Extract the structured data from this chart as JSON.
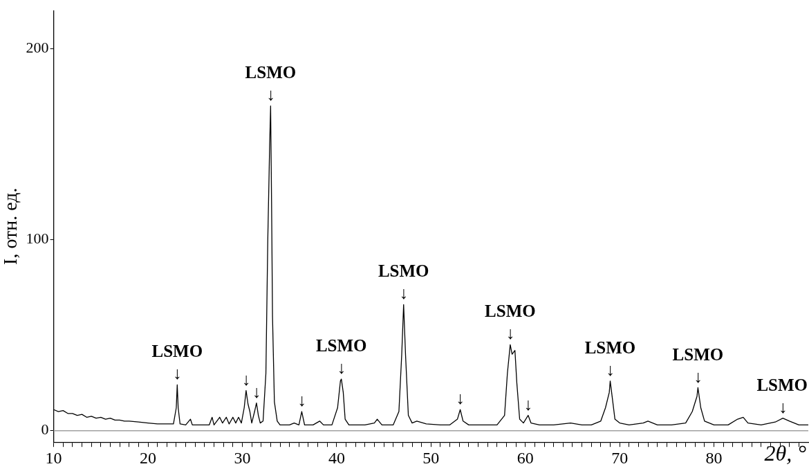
{
  "chart_data": {
    "type": "line",
    "xlabel": "2θ, °",
    "ylabel": "I, отн. ед.",
    "xlim": [
      10,
      90
    ],
    "ylim": [
      -6,
      220
    ],
    "xticks": [
      10,
      {
        "value": 11,
        "label": null
      },
      {
        "value": 12,
        "label": null
      },
      {
        "value": 13,
        "label": null
      },
      {
        "value": 14,
        "label": null
      },
      {
        "value": 15,
        "label": null
      },
      {
        "value": 16,
        "label": null
      },
      {
        "value": 17,
        "label": null
      },
      {
        "value": 18,
        "label": null
      },
      {
        "value": 19,
        "label": null
      },
      20,
      {
        "value": 21,
        "label": null
      },
      {
        "value": 22,
        "label": null
      },
      {
        "value": 23,
        "label": null
      },
      {
        "value": 24,
        "label": null
      },
      {
        "value": 25,
        "label": null
      },
      {
        "value": 26,
        "label": null
      },
      {
        "value": 27,
        "label": null
      },
      {
        "value": 28,
        "label": null
      },
      {
        "value": 29,
        "label": null
      },
      30,
      {
        "value": 31,
        "label": null
      },
      {
        "value": 32,
        "label": null
      },
      {
        "value": 33,
        "label": null
      },
      {
        "value": 34,
        "label": null
      },
      {
        "value": 35,
        "label": null
      },
      {
        "value": 36,
        "label": null
      },
      {
        "value": 37,
        "label": null
      },
      {
        "value": 38,
        "label": null
      },
      {
        "value": 39,
        "label": null
      },
      40,
      {
        "value": 41,
        "label": null
      },
      {
        "value": 42,
        "label": null
      },
      {
        "value": 43,
        "label": null
      },
      {
        "value": 44,
        "label": null
      },
      {
        "value": 45,
        "label": null
      },
      {
        "value": 46,
        "label": null
      },
      {
        "value": 47,
        "label": null
      },
      {
        "value": 48,
        "label": null
      },
      {
        "value": 49,
        "label": null
      },
      50,
      {
        "value": 51,
        "label": null
      },
      {
        "value": 52,
        "label": null
      },
      {
        "value": 53,
        "label": null
      },
      {
        "value": 54,
        "label": null
      },
      {
        "value": 55,
        "label": null
      },
      {
        "value": 56,
        "label": null
      },
      {
        "value": 57,
        "label": null
      },
      {
        "value": 58,
        "label": null
      },
      {
        "value": 59,
        "label": null
      },
      60,
      {
        "value": 61,
        "label": null
      },
      {
        "value": 62,
        "label": null
      },
      {
        "value": 63,
        "label": null
      },
      {
        "value": 64,
        "label": null
      },
      {
        "value": 65,
        "label": null
      },
      {
        "value": 66,
        "label": null
      },
      {
        "value": 67,
        "label": null
      },
      {
        "value": 68,
        "label": null
      },
      {
        "value": 69,
        "label": null
      },
      70,
      {
        "value": 71,
        "label": null
      },
      {
        "value": 72,
        "label": null
      },
      {
        "value": 73,
        "label": null
      },
      {
        "value": 74,
        "label": null
      },
      {
        "value": 75,
        "label": null
      },
      {
        "value": 76,
        "label": null
      },
      {
        "value": 77,
        "label": null
      },
      {
        "value": 78,
        "label": null
      },
      {
        "value": 79,
        "label": null
      },
      80,
      {
        "value": 81,
        "label": null
      },
      {
        "value": 82,
        "label": null
      },
      {
        "value": 83,
        "label": null
      },
      {
        "value": 84,
        "label": null
      },
      {
        "value": 85,
        "label": null
      },
      {
        "value": 86,
        "label": null
      },
      {
        "value": 87,
        "label": null
      },
      {
        "value": 88,
        "label": null
      },
      {
        "value": 89,
        "label": null
      }
    ],
    "yticks": [
      0,
      100,
      200
    ],
    "grid": false,
    "legend": false,
    "marker": "none",
    "line_style": "solid",
    "ref_lines": [
      {
        "axis": "y",
        "value": 0,
        "color": "#a0a0a0"
      }
    ],
    "x": [
      10,
      10.5,
      11,
      11.5,
      12,
      12.5,
      13,
      13.5,
      14,
      14.5,
      15,
      15.5,
      16,
      16.5,
      17,
      17.5,
      18,
      19,
      20,
      21,
      22,
      22.7,
      23.0,
      23.1,
      23.2,
      23.4,
      24,
      24.5,
      24.7,
      25.5,
      26.5,
      26.8,
      27.0,
      27.6,
      27.9,
      28.3,
      28.6,
      29.0,
      29.3,
      29.6,
      29.9,
      30.2,
      30.4,
      30.6,
      30.8,
      31.0,
      31.3,
      31.5,
      31.7,
      31.9,
      32.2,
      32.5,
      32.7,
      32.9,
      33.0,
      33.1,
      33.2,
      33.4,
      33.7,
      34,
      35,
      35.5,
      36.0,
      36.3,
      36.6,
      37.5,
      38.2,
      38.6,
      39.5,
      40.1,
      40.4,
      40.5,
      40.7,
      40.9,
      41.3,
      42,
      43,
      44,
      44.3,
      44.8,
      46,
      46.6,
      46.9,
      47.1,
      47.3,
      47.6,
      48,
      48.5,
      49.5,
      51,
      52,
      52.8,
      53.1,
      53.4,
      54,
      55.5,
      57,
      57.8,
      58.1,
      58.4,
      58.6,
      58.9,
      59.1,
      59.4,
      59.8,
      60.3,
      60.6,
      61.5,
      63,
      64.8,
      66,
      67,
      68,
      68.5,
      68.9,
      69.0,
      69.2,
      69.5,
      70,
      71,
      72.5,
      73,
      74,
      75.5,
      77,
      77.7,
      78.2,
      78.3,
      78.6,
      79,
      80,
      81.5,
      82.5,
      83.1,
      83.6,
      85,
      86.5,
      87.3,
      88,
      89,
      90
    ],
    "series": [
      {
        "color": "#000000",
        "values": [
          11,
          10,
          10.5,
          9,
          9,
          8,
          8.5,
          7,
          7.5,
          6.5,
          7,
          6,
          6.5,
          5.5,
          5.5,
          5,
          5,
          4.5,
          4,
          3.5,
          3.5,
          3.5,
          12,
          24,
          12,
          3.5,
          3,
          6,
          3,
          3,
          3,
          7,
          3,
          7,
          4,
          7,
          3.5,
          7,
          4,
          7,
          4,
          12,
          21,
          14,
          10,
          4,
          10,
          14.5,
          8,
          4,
          5,
          30,
          100,
          150,
          170,
          120,
          60,
          15,
          5,
          3,
          3,
          4,
          3,
          10,
          3,
          3,
          5,
          3,
          3,
          12,
          26,
          27,
          20,
          6,
          3,
          3,
          3,
          4,
          6,
          3,
          3,
          10,
          40,
          66,
          40,
          8,
          4,
          5,
          3.5,
          3,
          3,
          6,
          11,
          5,
          3,
          3,
          3,
          8,
          30,
          45,
          40,
          42,
          25,
          6,
          4,
          8,
          4,
          3,
          3,
          4,
          3,
          3,
          5,
          12,
          20,
          26,
          18,
          6,
          4,
          3,
          4,
          5,
          3,
          3,
          4,
          10,
          18,
          22.5,
          12,
          5,
          3,
          3,
          6,
          7,
          4,
          3,
          4.5,
          6.5,
          5,
          3,
          3
        ]
      }
    ],
    "annotations": [
      {
        "text": "↓",
        "x": 23.1,
        "y": 24
      },
      {
        "text": "LSMO",
        "x": 23.1,
        "y": 24
      },
      {
        "text": "↓",
        "x": 30.4,
        "y": 21
      },
      {
        "text": "↓",
        "x": 31.5,
        "y": 14.5
      },
      {
        "text": "↓",
        "x": 33.0,
        "y": 170
      },
      {
        "text": "LSMO",
        "x": 33.0,
        "y": 170
      },
      {
        "text": "↓",
        "x": 36.3,
        "y": 10
      },
      {
        "text": "↓",
        "x": 40.5,
        "y": 27
      },
      {
        "text": "LSMO",
        "x": 40.5,
        "y": 27
      },
      {
        "text": "↓",
        "x": 47.1,
        "y": 66
      },
      {
        "text": "LSMO",
        "x": 47.1,
        "y": 66
      },
      {
        "text": "↓",
        "x": 53.1,
        "y": 11
      },
      {
        "text": "↓",
        "x": 58.4,
        "y": 45
      },
      {
        "text": "LSMO",
        "x": 58.4,
        "y": 45
      },
      {
        "text": "↓",
        "x": 60.3,
        "y": 8
      },
      {
        "text": "↓",
        "x": 69.0,
        "y": 26
      },
      {
        "text": "LSMO",
        "x": 69.0,
        "y": 26
      },
      {
        "text": "↓",
        "x": 78.3,
        "y": 22.5
      },
      {
        "text": "LSMO",
        "x": 78.3,
        "y": 22.5
      },
      {
        "text": "↓",
        "x": 87.3,
        "y": 6.5
      },
      {
        "text": "LSMO",
        "x": 87.3,
        "y": 6.5
      }
    ]
  }
}
